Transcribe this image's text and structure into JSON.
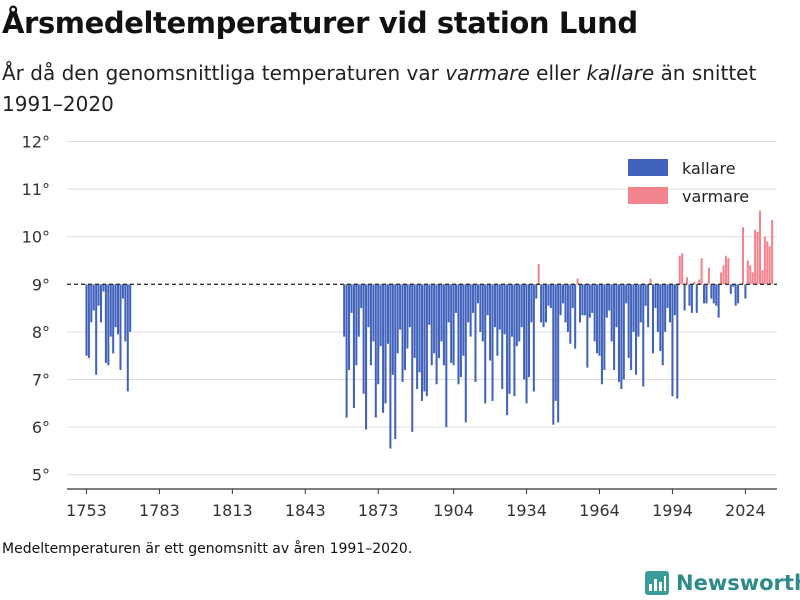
{
  "title": "Årsmedeltemperaturer vid station Lund",
  "subtitle": {
    "part1": "År då den genomsnittliga temperaturen var ",
    "warm_word": "varmare",
    "part2": " eller ",
    "cold_word": "kallare",
    "part3": " än snittet 1991–2020"
  },
  "footnote": "Medeltemperaturen är ett genomsnitt av åren 1991–2020.",
  "brand": "Newsworthy",
  "colors": {
    "kallare": "#4062bb",
    "varmare": "#f2838f",
    "baseline": "#333333",
    "grid": "#dddddd"
  },
  "chart_data": {
    "type": "bar",
    "baseline": 9,
    "ylim": [
      4.7,
      12.2
    ],
    "yticks": [
      "5°",
      "6°",
      "7°",
      "8°",
      "9°",
      "10°",
      "11°",
      "12°"
    ],
    "ytick_values": [
      5,
      6,
      7,
      8,
      9,
      10,
      11,
      12
    ],
    "xlim": [
      1745,
      2037
    ],
    "xticks": [
      "1753",
      "1783",
      "1813",
      "1843",
      "1873",
      "1904",
      "1934",
      "1964",
      "1994",
      "2024"
    ],
    "xtick_values": [
      1753,
      1783,
      1813,
      1843,
      1873,
      1904,
      1934,
      1964,
      1994,
      2024
    ],
    "legend": {
      "position": "top-right",
      "items": [
        "kallare",
        "varmare"
      ]
    },
    "series": [
      {
        "name": "segment-1753",
        "start_year": 1753,
        "values": [
          7.5,
          7.45,
          8.2,
          8.45,
          7.1,
          8.55,
          8.2,
          8.85,
          7.35,
          7.3,
          7.9,
          7.55,
          8.1,
          7.95,
          7.2,
          8.7,
          7.8,
          6.75,
          8.0
        ]
      },
      {
        "name": "segment-1859",
        "start_year": 1859,
        "values": [
          7.9,
          6.2,
          7.2,
          8.4,
          6.4,
          7.3,
          7.9,
          8.5,
          6.7,
          5.95,
          8.1,
          7.3,
          7.8,
          6.2,
          6.9,
          7.7,
          6.3,
          6.5,
          7.75,
          5.55,
          7.1,
          5.75,
          7.55,
          8.05,
          6.95,
          7.2,
          7.65,
          8.1,
          5.9,
          7.45,
          6.8,
          7.15,
          6.55,
          6.75,
          6.65,
          8.15,
          7.3,
          7.55,
          6.9,
          7.45,
          7.8,
          7.3,
          6.0,
          8.2,
          7.35,
          7.3,
          8.4,
          6.9,
          7.05,
          7.5,
          6.1,
          8.2,
          7.9,
          8.4,
          6.95,
          8.6,
          8.0,
          7.8,
          6.5,
          8.35,
          7.4,
          6.55,
          8.1,
          7.5,
          8.05,
          6.8,
          7.95,
          6.25,
          6.7,
          7.9,
          6.65,
          7.7,
          7.8,
          8.1,
          7.0,
          6.5,
          7.05,
          8.2,
          6.75,
          8.7,
          9.43,
          8.2,
          8.1,
          8.2,
          8.55,
          8.5,
          6.05,
          6.55,
          6.1,
          8.35,
          8.6,
          8.2,
          8.0,
          7.75,
          8.5,
          7.65,
          9.12,
          8.2,
          8.35,
          8.35,
          7.25,
          8.3,
          8.4,
          7.8,
          7.55,
          7.5,
          6.9,
          7.2,
          8.3,
          8.45,
          7.8,
          7.2,
          8.1,
          6.95,
          6.8,
          7.0,
          8.6,
          7.45,
          7.2,
          8.0,
          7.1,
          7.9,
          8.2,
          6.85,
          8.55,
          8.1,
          9.12,
          7.55,
          8.5,
          8.0,
          7.6,
          7.3,
          8.0,
          8.5,
          8.2,
          6.65,
          8.35,
          6.6,
          9.6,
          9.65,
          8.45,
          9.15,
          8.55,
          8.4,
          9.05,
          8.4,
          9.1,
          9.55,
          8.6,
          8.6,
          9.35,
          8.7,
          8.6,
          8.55,
          8.3,
          9.25,
          9.4,
          9.6,
          9.55,
          8.8,
          8.95,
          8.55,
          8.6,
          9.0,
          10.2,
          8.7,
          9.5,
          9.4,
          9.25,
          10.15,
          10.1,
          10.55,
          9.3,
          10.0,
          9.9,
          9.8,
          10.35
        ]
      }
    ]
  }
}
